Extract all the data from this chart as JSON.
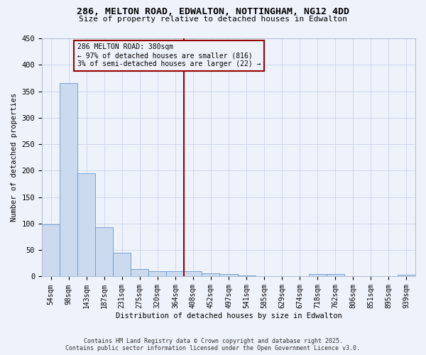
{
  "title": "286, MELTON ROAD, EDWALTON, NOTTINGHAM, NG12 4DD",
  "subtitle": "Size of property relative to detached houses in Edwalton",
  "xlabel": "Distribution of detached houses by size in Edwalton",
  "ylabel": "Number of detached properties",
  "bar_color": "#ccdaf0",
  "bar_edge_color": "#6699cc",
  "grid_color": "#c8d4e8",
  "background_color": "#eef2fb",
  "categories": [
    "54sqm",
    "98sqm",
    "143sqm",
    "187sqm",
    "231sqm",
    "275sqm",
    "320sqm",
    "364sqm",
    "408sqm",
    "452sqm",
    "497sqm",
    "541sqm",
    "585sqm",
    "629sqm",
    "674sqm",
    "718sqm",
    "762sqm",
    "806sqm",
    "851sqm",
    "895sqm",
    "939sqm"
  ],
  "values": [
    98,
    365,
    195,
    93,
    45,
    14,
    10,
    10,
    10,
    6,
    5,
    2,
    1,
    0,
    0,
    5,
    4,
    1,
    0,
    0,
    3
  ],
  "vline_index": 8,
  "vline_color": "#990000",
  "annotation_text": "286 MELTON ROAD: 380sqm\n← 97% of detached houses are smaller (816)\n3% of semi-detached houses are larger (22) →",
  "annotation_box_color": "#990000",
  "ylim": [
    0,
    450
  ],
  "yticks": [
    0,
    50,
    100,
    150,
    200,
    250,
    300,
    350,
    400,
    450
  ],
  "footer_line1": "Contains HM Land Registry data © Crown copyright and database right 2025.",
  "footer_line2": "Contains public sector information licensed under the Open Government Licence v3.0."
}
